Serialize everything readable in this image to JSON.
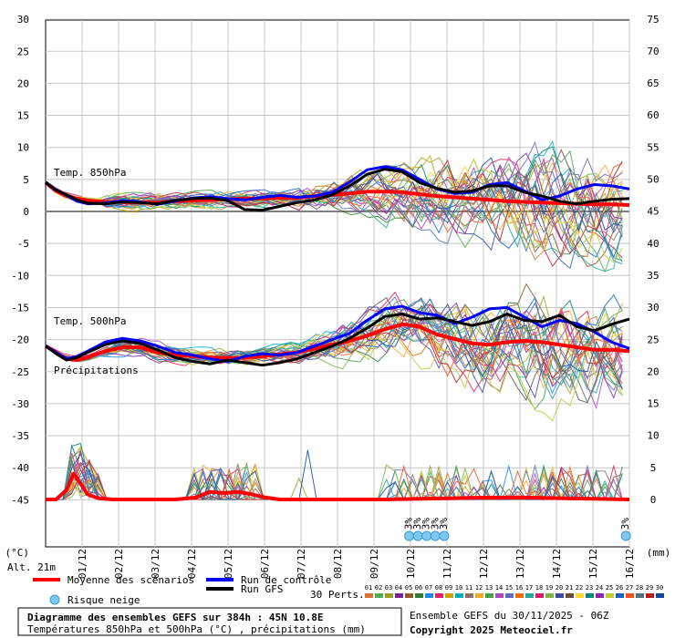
{
  "chart_data": {
    "type": "line",
    "title": "Diagramme des ensembles GEFS sur 384h : 45N 10.8E",
    "subtitle": "Températures 850hPa et 500hPa (°C) , précipitations (mm)",
    "left_axis": {
      "unit": "(°C)",
      "ticks": [
        30,
        25,
        20,
        15,
        10,
        5,
        0,
        -5,
        -10,
        -15,
        -20,
        -25,
        -30,
        -35,
        -40,
        -45
      ]
    },
    "right_axis": {
      "unit": "(mm)",
      "ticks": [
        75,
        70,
        65,
        60,
        55,
        50,
        45,
        40,
        35,
        30,
        25,
        20,
        15,
        10,
        5,
        0
      ]
    },
    "x_ticks": [
      "01/12",
      "02/12",
      "03/12",
      "04/12",
      "05/12",
      "06/12",
      "07/12",
      "08/12",
      "09/12",
      "10/12",
      "11/12",
      "12/12",
      "13/12",
      "14/12",
      "15/12",
      "16/12"
    ],
    "panel_labels": {
      "t850": "Temp. 850hPa",
      "t500": "Temp. 500hPa",
      "precip": "Précipitations"
    },
    "altitude": "Alt. 21m",
    "legend": {
      "mean": "Moyenne des scénarios",
      "control": "Run de contrôle",
      "gfs": "Run GFS",
      "snow": "Risque neige",
      "perts_label": "30 Perts.",
      "pert_numbers": [
        "01",
        "02",
        "03",
        "04",
        "05",
        "06",
        "07",
        "08",
        "09",
        "10",
        "11",
        "12",
        "13",
        "14",
        "15",
        "16",
        "17",
        "18",
        "19",
        "20",
        "21",
        "22",
        "23",
        "24",
        "25",
        "26",
        "27",
        "28",
        "29",
        "30"
      ],
      "pert_colors": [
        "#e0712c",
        "#4caf50",
        "#9e9e1e",
        "#7b1fa2",
        "#8b5a2b",
        "#2e7d32",
        "#1e88e5",
        "#e91e63",
        "#c6a700",
        "#00acc1",
        "#8d6e63",
        "#f9a825",
        "#43a047",
        "#ab47bc",
        "#5c6bc0",
        "#ef6c00",
        "#26a69a",
        "#d81b60",
        "#7cb342",
        "#3949ab",
        "#6d4c41",
        "#fdd835",
        "#00897b",
        "#8e24aa",
        "#c0ca33",
        "#1565c0",
        "#f4511e",
        "#546e7a",
        "#b71c1c",
        "#0d47a1"
      ]
    },
    "snow_risk": [
      {
        "x_day": 10.7,
        "label": "3%"
      },
      {
        "x_day": 10.95,
        "label": "3%"
      },
      {
        "x_day": 11.2,
        "label": "3%"
      },
      {
        "x_day": 11.45,
        "label": "3%"
      },
      {
        "x_day": 11.7,
        "label": "3%"
      },
      {
        "x_day": 16.9,
        "label": "3%"
      }
    ],
    "x_start_day": 0.3,
    "x_end_day": 17.0,
    "series": [
      {
        "name": "Moyenne des scénarios",
        "panel": "t850",
        "color": "#ff0000",
        "x": [
          0.3,
          0.6,
          0.9,
          1.2,
          1.5,
          2,
          2.5,
          3,
          3.5,
          4,
          4.5,
          5,
          5.5,
          6,
          6.5,
          7,
          7.5,
          8,
          8.5,
          9,
          9.5,
          10,
          10.5,
          11,
          11.5,
          12,
          12.5,
          13,
          13.5,
          14,
          14.5,
          15,
          15.5,
          16,
          16.5,
          17
        ],
        "y": [
          4.5,
          3.2,
          2.4,
          2,
          1.7,
          1.5,
          1.5,
          1.4,
          1.4,
          1.6,
          1.7,
          1.8,
          1.9,
          2.0,
          2.0,
          2.1,
          2.1,
          2.4,
          2.6,
          2.8,
          3.1,
          3.1,
          3.0,
          2.7,
          2.4,
          2.2,
          2.0,
          1.8,
          1.6,
          1.5,
          1.4,
          1.3,
          1.2,
          1.1,
          1.1,
          1.0
        ]
      },
      {
        "name": "Run de contrôle",
        "panel": "t850",
        "color": "#0000ff",
        "x": [
          0.3,
          0.6,
          0.9,
          1.2,
          1.5,
          2,
          2.5,
          3,
          3.5,
          4,
          4.5,
          5,
          5.5,
          6,
          6.5,
          7,
          7.5,
          8,
          8.5,
          9,
          9.5,
          10,
          10.5,
          11,
          11.5,
          12,
          12.5,
          13,
          13.5,
          14,
          14.5,
          15,
          15.5,
          16,
          16.5,
          17
        ],
        "y": [
          4.5,
          3.4,
          2.5,
          1.6,
          1.2,
          1.3,
          1.7,
          1.5,
          1.1,
          1.6,
          2.1,
          2.3,
          2.0,
          1.8,
          2.2,
          2.5,
          2.2,
          2.4,
          3.0,
          4.6,
          6.5,
          7.0,
          6.5,
          5.0,
          3.5,
          2.8,
          3.0,
          4.2,
          4.5,
          3.2,
          1.8,
          2.4,
          3.5,
          4.2,
          4.0,
          3.5
        ]
      },
      {
        "name": "Run GFS",
        "panel": "t850",
        "color": "#000000",
        "x": [
          0.3,
          0.6,
          0.9,
          1.2,
          1.5,
          2,
          2.5,
          3,
          3.5,
          4,
          4.5,
          5,
          5.5,
          6,
          6.5,
          7,
          7.5,
          8,
          8.5,
          9,
          9.5,
          10,
          10.5,
          11,
          11.5,
          12,
          12.5,
          13,
          13.5,
          14,
          14.5,
          15,
          15.5,
          16,
          16.5,
          17
        ],
        "y": [
          4.6,
          3.3,
          2.6,
          1.8,
          1.3,
          1.2,
          1.5,
          1.4,
          1.2,
          1.7,
          2.0,
          2.1,
          1.7,
          0.3,
          0.2,
          0.8,
          1.4,
          1.8,
          2.6,
          4.0,
          5.8,
          6.6,
          6.2,
          4.5,
          3.6,
          3.0,
          3.2,
          4.0,
          4.0,
          3.0,
          2.4,
          1.6,
          1.2,
          1.6,
          1.9,
          2.0
        ]
      },
      {
        "name": "Moyenne des scénarios",
        "panel": "t500",
        "color": "#ff0000",
        "x": [
          0.3,
          0.6,
          0.9,
          1.2,
          1.5,
          2,
          2.5,
          3,
          3.5,
          4,
          4.5,
          5,
          5.5,
          6,
          6.5,
          7,
          7.5,
          8,
          8.5,
          9,
          9.5,
          10,
          10.5,
          11,
          11.5,
          12,
          12.5,
          13,
          13.5,
          14,
          14.5,
          15,
          15.5,
          16,
          16.5,
          17
        ],
        "y": [
          -21,
          -22,
          -23,
          -23.2,
          -22.8,
          -21.8,
          -21.2,
          -21.2,
          -22,
          -22.4,
          -22.6,
          -22.8,
          -22.9,
          -22.8,
          -22.6,
          -22.3,
          -22.0,
          -21.4,
          -20.8,
          -20.2,
          -19.4,
          -18.4,
          -17.6,
          -18.0,
          -19.2,
          -19.9,
          -20.6,
          -20.8,
          -20.4,
          -20.2,
          -20.4,
          -20.8,
          -21.2,
          -21.6,
          -21.6,
          -21.8
        ]
      },
      {
        "name": "Run de contrôle",
        "panel": "t500",
        "color": "#0000ff",
        "x": [
          0.3,
          0.6,
          0.9,
          1.2,
          1.5,
          2,
          2.5,
          3,
          3.5,
          4,
          4.5,
          5,
          5.5,
          6,
          6.5,
          7,
          7.5,
          8,
          8.5,
          9,
          9.5,
          10,
          10.5,
          11,
          11.5,
          12,
          12.5,
          13,
          13.5,
          14,
          14.5,
          15,
          15.5,
          16,
          16.5,
          17
        ],
        "y": [
          -21,
          -22,
          -23,
          -22.6,
          -21.8,
          -20.4,
          -19.8,
          -20.2,
          -21.0,
          -22.0,
          -22.4,
          -23.0,
          -23.4,
          -22.6,
          -22.2,
          -22.4,
          -22.0,
          -21.0,
          -20.0,
          -19.0,
          -17.0,
          -15.2,
          -14.8,
          -15.8,
          -16.2,
          -17.5,
          -16.5,
          -15.2,
          -15.0,
          -16.5,
          -18.0,
          -17.0,
          -17.5,
          -18.8,
          -20.4,
          -21.4
        ]
      },
      {
        "name": "Run GFS",
        "panel": "t500",
        "color": "#000000",
        "x": [
          0.3,
          0.6,
          0.9,
          1.2,
          1.5,
          2,
          2.5,
          3,
          3.5,
          4,
          4.5,
          5,
          5.5,
          6,
          6.5,
          7,
          7.5,
          8,
          8.5,
          9,
          9.5,
          10,
          10.5,
          11,
          11.5,
          12,
          12.5,
          13,
          13.5,
          14,
          14.5,
          15,
          15.5,
          16,
          16.5,
          17
        ],
        "y": [
          -21,
          -22.2,
          -23.2,
          -22.8,
          -22.0,
          -20.8,
          -20.2,
          -20.6,
          -21.6,
          -22.8,
          -23.4,
          -23.8,
          -23.2,
          -23.6,
          -24.0,
          -23.6,
          -23.0,
          -22.0,
          -21.0,
          -19.8,
          -18.2,
          -16.4,
          -16.0,
          -16.8,
          -16.6,
          -17.2,
          -17.8,
          -17.2,
          -16.0,
          -17.0,
          -17.2,
          -16.2,
          -18.0,
          -18.6,
          -17.6,
          -16.8
        ]
      },
      {
        "name": "Moyenne des scénarios",
        "panel": "precip",
        "color": "#ff0000",
        "x": [
          0.3,
          0.6,
          0.9,
          1.1,
          1.3,
          1.5,
          1.8,
          2.2,
          3,
          4,
          4.6,
          5,
          5.4,
          5.8,
          6.2,
          6.6,
          7,
          8,
          9,
          10,
          11,
          12,
          13,
          14,
          15,
          16,
          17
        ],
        "y": [
          0,
          0,
          1.5,
          4,
          2.5,
          0.8,
          0.2,
          0,
          0,
          0,
          0.3,
          1.2,
          1.0,
          1.2,
          0.8,
          0.3,
          0,
          0,
          0,
          0,
          0.1,
          0.2,
          0.3,
          0.3,
          0.2,
          0.1,
          0
        ]
      }
    ]
  }
}
